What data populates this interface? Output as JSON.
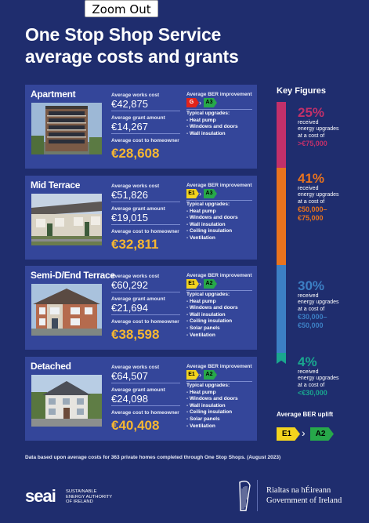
{
  "zoom_button": "Zoom Out",
  "title_line1": "One Stop Shop Service",
  "title_line2": "average costs and grants",
  "labels": {
    "works": "Average works cost",
    "grant": "Average grant amount",
    "cost": "Average cost to homeowner",
    "ber": "Average BER improvement",
    "typical": "Typical upgrades:"
  },
  "cards": [
    {
      "title": "Apartment",
      "works": "€42,875",
      "grant": "€14,267",
      "cost": "€28,608",
      "ber_from": "G",
      "ber_from_color": "#e2231a",
      "ber_to": "A3",
      "upgrades": [
        "- Heat pump",
        "- Windows and doors",
        "- Wall insulation"
      ]
    },
    {
      "title": "Mid Terrace",
      "works": "€51,826",
      "grant": "€19,015",
      "cost": "€32,811",
      "ber_from": "E1",
      "ber_from_color": "#f3d41e",
      "ber_to": "A3",
      "upgrades": [
        "- Heat pump",
        "- Windows and doors",
        "- Wall insulation",
        "- Ceiling insulation",
        "- Ventilation"
      ]
    },
    {
      "title": "Semi-D/End Terrace",
      "works": "€60,292",
      "grant": "€21,694",
      "cost": "€38,598",
      "ber_from": "E1",
      "ber_from_color": "#f3d41e",
      "ber_to": "A2",
      "upgrades": [
        "- Heat pump",
        "- Windows and doors",
        "- Wall insulation",
        "- Ceiling insulation",
        "- Solar panels",
        "- Ventilation"
      ]
    },
    {
      "title": "Detached",
      "works": "€64,507",
      "grant": "€24,098",
      "cost": "€40,408",
      "ber_from": "E1",
      "ber_from_color": "#f3d41e",
      "ber_to": "A2",
      "upgrades": [
        "- Heat pump",
        "- Windows and doors",
        "- Wall insulation",
        "- Ceiling insulation",
        "- Solar panels",
        "- Ventilation"
      ]
    }
  ],
  "key_figures": {
    "title": "Key Figures",
    "items": [
      {
        "pct": "25%",
        "color": "#c2306a",
        "l1": "received",
        "l2": "energy upgrades",
        "l3": "at a cost of",
        "a1": ">€75,000",
        "a2": ""
      },
      {
        "pct": "41%",
        "color": "#e8731e",
        "l1": "received",
        "l2": "energy upgrades",
        "l3": "at a cost of",
        "a1": "€50,000–",
        "a2": "€75,000"
      },
      {
        "pct": "30%",
        "color": "#3c7fc4",
        "l1": "received",
        "l2": "energy upgrades",
        "l3": "at a cost of",
        "a1": "€30,000–",
        "a2": "€50,000"
      },
      {
        "pct": "4%",
        "color": "#1aa78f",
        "l1": "received",
        "l2": "energy upgrades",
        "l3": "at a cost of",
        "a1": "<€30,000",
        "a2": ""
      }
    ]
  },
  "uplift": {
    "title": "Average BER uplift",
    "from": "E1",
    "from_color": "#f3d41e",
    "to": "A2",
    "to_color": "#27a84a"
  },
  "footnote": "Data based upon average costs for 363 private homes completed through One Stop Shops. (August 2023)",
  "seai": {
    "logo": "seai",
    "l1": "SUSTAINABLE",
    "l2": "ENERGY AUTHORITY",
    "l3": "OF IRELAND"
  },
  "gov": {
    "l1": "Rialtas na hÉireann",
    "l2": "Government of Ireland"
  }
}
